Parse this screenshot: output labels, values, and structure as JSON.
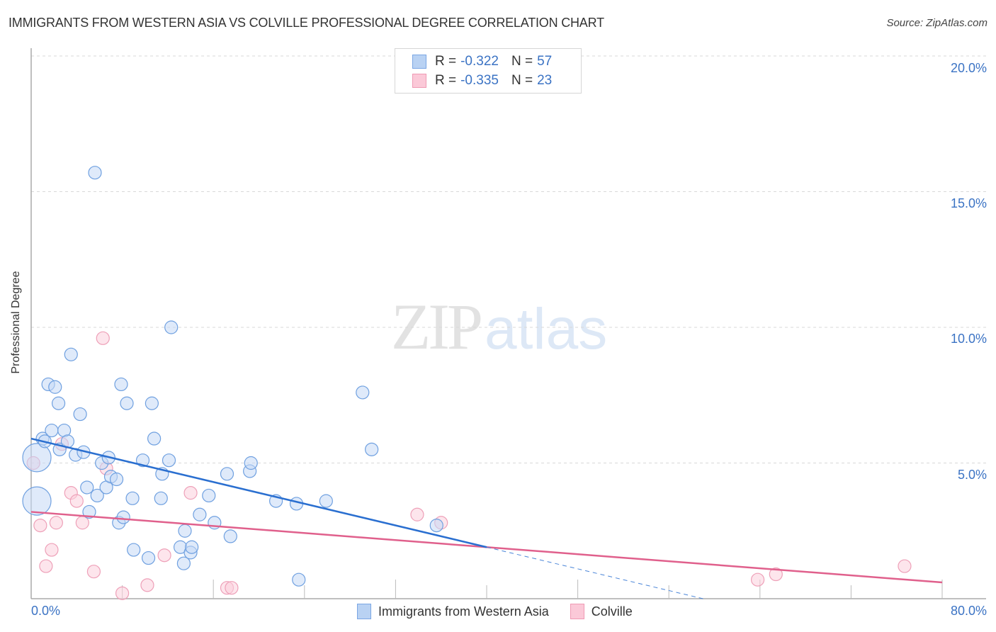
{
  "header": {
    "title": "IMMIGRANTS FROM WESTERN ASIA VS COLVILLE PROFESSIONAL DEGREE CORRELATION CHART",
    "source": "Source: ZipAtlas.com"
  },
  "watermark": {
    "zip": "ZIP",
    "atlas": "atlas"
  },
  "legend_top": {
    "rows": [
      {
        "r_label": "R =",
        "r_value": "-0.322",
        "n_label": "N =",
        "n_value": "57",
        "color": "#6fa0e0"
      },
      {
        "r_label": "R =",
        "r_value": "-0.335",
        "n_label": "N =",
        "n_value": "23",
        "color": "#ee8fb0"
      }
    ]
  },
  "legend_bottom": {
    "items": [
      {
        "label": "Immigrants from Western Asia"
      },
      {
        "label": "Colville"
      }
    ]
  },
  "axes": {
    "ylabel": "Professional Degree",
    "yticks": [
      "20.0%",
      "15.0%",
      "10.0%",
      "5.0%"
    ],
    "xticks": [
      "0.0%",
      "80.0%"
    ]
  },
  "chart_data": {
    "type": "scatter",
    "title": "IMMIGRANTS FROM WESTERN ASIA VS COLVILLE PROFESSIONAL DEGREE CORRELATION CHART",
    "xlabel": "",
    "ylabel": "Professional Degree",
    "xlim": [
      0,
      80
    ],
    "ylim": [
      0,
      20
    ],
    "x_unit": "%",
    "y_unit": "%",
    "grid": "horizontal dashed at 5%, 10%, 15%, 20%",
    "legend_position": "top-center and bottom",
    "series": [
      {
        "name": "Immigrants from Western Asia",
        "color": "#6fa0e0",
        "R": -0.322,
        "N": 57,
        "points": [
          [
            0.5,
            3.6,
            "large"
          ],
          [
            0.5,
            5.2,
            "large"
          ],
          [
            1.0,
            5.9
          ],
          [
            1.2,
            5.8
          ],
          [
            1.5,
            7.9
          ],
          [
            1.8,
            6.2
          ],
          [
            2.1,
            7.8
          ],
          [
            2.4,
            7.2
          ],
          [
            2.5,
            5.5
          ],
          [
            2.9,
            6.2
          ],
          [
            3.2,
            5.8
          ],
          [
            3.5,
            9.0
          ],
          [
            3.9,
            5.3
          ],
          [
            4.3,
            6.8
          ],
          [
            4.6,
            5.4
          ],
          [
            4.9,
            4.1
          ],
          [
            5.1,
            3.2
          ],
          [
            5.8,
            3.8
          ],
          [
            5.6,
            15.7
          ],
          [
            6.2,
            5.0
          ],
          [
            6.6,
            4.1
          ],
          [
            6.8,
            5.2
          ],
          [
            7.0,
            4.5
          ],
          [
            7.5,
            4.4
          ],
          [
            7.7,
            2.8
          ],
          [
            7.9,
            7.9
          ],
          [
            8.1,
            3.0
          ],
          [
            8.4,
            7.2
          ],
          [
            8.9,
            3.7
          ],
          [
            9.0,
            1.8
          ],
          [
            9.8,
            5.1
          ],
          [
            10.3,
            1.5
          ],
          [
            10.6,
            7.2
          ],
          [
            10.8,
            5.9
          ],
          [
            11.4,
            3.7
          ],
          [
            11.5,
            4.6
          ],
          [
            12.1,
            5.1
          ],
          [
            12.3,
            10.0
          ],
          [
            13.1,
            1.9
          ],
          [
            13.4,
            1.3
          ],
          [
            13.5,
            2.5
          ],
          [
            14.0,
            1.7
          ],
          [
            14.1,
            1.9
          ],
          [
            14.8,
            3.1
          ],
          [
            15.6,
            3.8
          ],
          [
            16.1,
            2.8
          ],
          [
            17.2,
            4.6
          ],
          [
            17.5,
            2.3
          ],
          [
            19.2,
            4.7
          ],
          [
            19.3,
            5.0
          ],
          [
            21.5,
            3.6
          ],
          [
            23.3,
            3.5
          ],
          [
            23.5,
            0.7
          ],
          [
            25.9,
            3.6
          ],
          [
            29.1,
            7.6
          ],
          [
            29.9,
            5.5
          ],
          [
            35.6,
            2.7
          ]
        ],
        "trendline": {
          "x0": 0,
          "y0": 5.9,
          "x1": 40,
          "y1": 1.9,
          "dashed_extension_to": [
            59,
            0
          ]
        }
      },
      {
        "name": "Colville",
        "color": "#ee8fb0",
        "R": -0.335,
        "N": 23,
        "points": [
          [
            0.2,
            5.0
          ],
          [
            0.8,
            2.7
          ],
          [
            1.3,
            1.2
          ],
          [
            1.8,
            1.8
          ],
          [
            2.2,
            2.8
          ],
          [
            2.7,
            5.7
          ],
          [
            3.5,
            3.9
          ],
          [
            4.0,
            3.6
          ],
          [
            4.5,
            2.8
          ],
          [
            5.5,
            1.0
          ],
          [
            6.3,
            9.6
          ],
          [
            6.6,
            4.8
          ],
          [
            8.0,
            0.2
          ],
          [
            10.2,
            0.5
          ],
          [
            11.7,
            1.6
          ],
          [
            14.0,
            3.9
          ],
          [
            17.2,
            0.4
          ],
          [
            17.6,
            0.4
          ],
          [
            33.9,
            3.1
          ],
          [
            36.0,
            2.8
          ],
          [
            63.8,
            0.7
          ],
          [
            65.4,
            0.9
          ],
          [
            76.7,
            1.2
          ]
        ],
        "trendline": {
          "x0": 0,
          "y0": 3.2,
          "x1": 80,
          "y1": 0.6
        }
      }
    ]
  }
}
